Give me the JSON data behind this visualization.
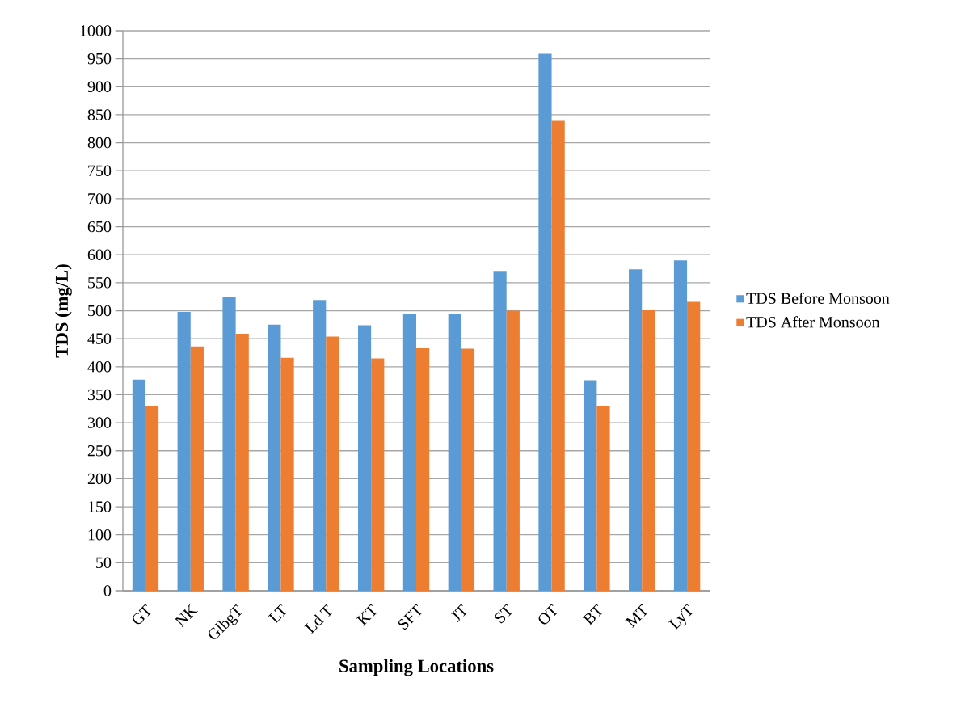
{
  "chart_data": {
    "type": "bar",
    "xlabel": "Sampling Locations",
    "ylabel": "TDS (mg/L)",
    "categories": [
      "GT",
      "NK",
      "GlbgT",
      "LT",
      "Ld T",
      "KT",
      "SFT",
      "JT",
      "ST",
      "OT",
      "BT",
      "MT",
      "LyT"
    ],
    "series": [
      {
        "name": "TDS Before Monsoon",
        "color": "#5b9bd5",
        "values": [
          377,
          498,
          525,
          475,
          519,
          474,
          495,
          494,
          571,
          959,
          376,
          574,
          590
        ]
      },
      {
        "name": "TDS After Monsoon",
        "color": "#ed7d31",
        "values": [
          330,
          436,
          459,
          416,
          454,
          415,
          433,
          432,
          500,
          839,
          329,
          502,
          516
        ]
      }
    ],
    "ylim": [
      0,
      1000
    ],
    "yticks": [
      0,
      50,
      100,
      150,
      200,
      250,
      300,
      350,
      400,
      450,
      500,
      550,
      600,
      650,
      700,
      750,
      800,
      850,
      900,
      950,
      1000
    ],
    "grid": "y",
    "legend": "right"
  }
}
